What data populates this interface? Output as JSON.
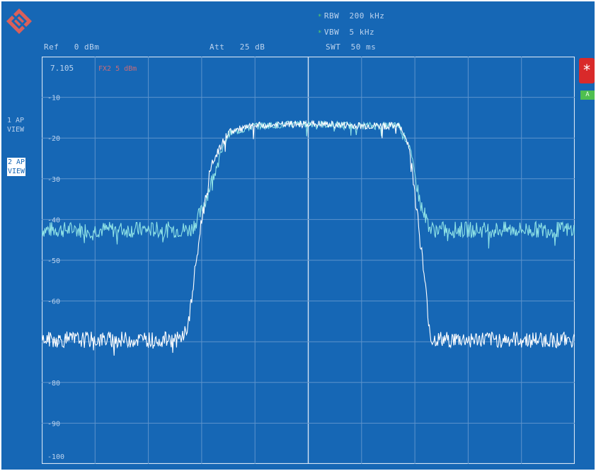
{
  "header": {
    "rbw_label": "RBW",
    "rbw_value": "200 kHz",
    "vbw_label": "VBW",
    "vbw_value": "5 kHz",
    "swt_label": "SWT",
    "swt_value": "50 ms",
    "ref_label": "Ref",
    "ref_value": "0 dBm",
    "att_label": "Att",
    "att_value": "25 dB"
  },
  "marker": {
    "value": "7.105",
    "note": "FX2 5 dBm"
  },
  "traces": [
    {
      "id": "1",
      "line1": "1 AP",
      "line2": "VIEW",
      "color": "#8fe3e6"
    },
    {
      "id": "2",
      "line1": "2 AP",
      "line2": "VIEW",
      "color": "#ffffff"
    }
  ],
  "side_buttons": {
    "star": "*",
    "a_label": "A"
  },
  "colors": {
    "background": "#1667b5",
    "grid": "#5d93cc",
    "trace1": "#8fe3e6",
    "trace2": "#ffffff",
    "accent_red": "#d92a2a",
    "accent_green": "#4fbf4f"
  },
  "chart_data": {
    "type": "line",
    "ylim": [
      -100,
      0
    ],
    "yticks": [
      "-10",
      "-20",
      "-30",
      "-40",
      "-50",
      "-60",
      "-70",
      "-80",
      "-90",
      "-100"
    ],
    "xlim": [
      0,
      10
    ],
    "grid": true,
    "series": [
      {
        "name": "1 AP",
        "x": [
          0,
          2.8,
          3.0,
          3.3,
          3.5,
          4.0,
          5.0,
          6.0,
          6.7,
          6.9,
          7.1,
          7.3,
          10
        ],
        "values": [
          -42.5,
          -42.5,
          -38,
          -26,
          -19,
          -17,
          -16.5,
          -17,
          -17,
          -22,
          -36,
          -42.5,
          -42.5
        ]
      },
      {
        "name": "2 AP",
        "x": [
          0,
          2.6,
          2.75,
          3.0,
          3.2,
          3.5,
          4.0,
          5.0,
          6.0,
          6.7,
          6.9,
          7.1,
          7.3,
          10
        ],
        "values": [
          -69.5,
          -69.5,
          -66,
          -40,
          -26,
          -18.5,
          -17,
          -16.5,
          -17,
          -17,
          -22,
          -45,
          -69.5,
          -69.5
        ]
      }
    ]
  }
}
